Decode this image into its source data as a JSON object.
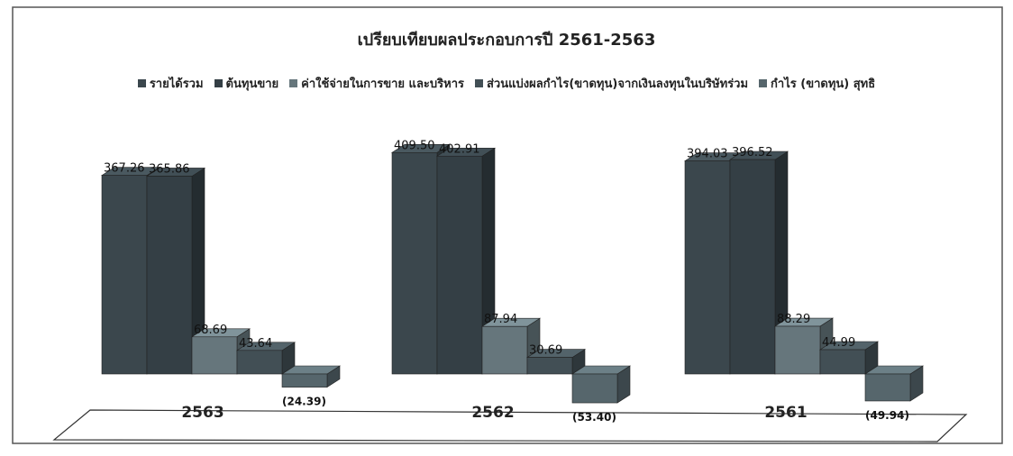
{
  "chart_data": {
    "type": "bar3d",
    "title": "เปรียบเทียบผลประกอบการปี 2561-2563",
    "categories": [
      "2563",
      "2562",
      "2561"
    ],
    "series": [
      {
        "name": "รายได้รวม",
        "color": "#3b474d",
        "values": [
          367.26,
          409.5,
          394.03
        ],
        "value_labels": [
          "367.26",
          "409.50",
          "394.03"
        ]
      },
      {
        "name": "ต้นทุนขาย",
        "color": "#343f45",
        "values": [
          365.86,
          402.91,
          396.52
        ],
        "value_labels": [
          "365.86",
          "402.91",
          "396.52"
        ]
      },
      {
        "name": "ค่าใช้จ่ายในการขาย และบริหาร",
        "color": "#66767c",
        "values": [
          68.69,
          87.94,
          88.29
        ],
        "value_labels": [
          "68.69",
          "87.94",
          "88.29"
        ]
      },
      {
        "name": "ส่วนแบ่งผลกำไร(ขาดทุน)จากเงินลงทุนในบริษัทร่วม",
        "color": "#424f55",
        "values": [
          43.64,
          30.69,
          44.99
        ],
        "value_labels": [
          "43.64",
          "30.69",
          "44.99"
        ]
      },
      {
        "name": "กำไร (ขาดทุน) สุทธิ",
        "color": "#56666c",
        "values": [
          -24.39,
          -53.4,
          -49.94
        ],
        "value_labels": [
          "(24.39)",
          "(53.40)",
          "(49.94)"
        ]
      }
    ]
  }
}
